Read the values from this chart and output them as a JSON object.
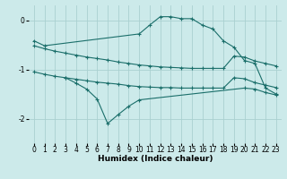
{
  "background_color": "#cceaea",
  "grid_color": "#aad0d0",
  "line_color": "#1a6e6a",
  "xlabel": "Humidex (Indice chaleur)",
  "ylim": [
    -2.5,
    0.3
  ],
  "xlim": [
    -0.5,
    23.5
  ],
  "yticks": [
    0,
    -1,
    -2
  ],
  "xtick_labels": [
    "0",
    "1",
    "2",
    "3",
    "4",
    "5",
    "6",
    "7",
    "8",
    "9",
    "10",
    "11",
    "12",
    "13",
    "14",
    "15",
    "16",
    "17",
    "18",
    "19",
    "20",
    "21",
    "22",
    "23"
  ],
  "curve1_x": [
    0,
    1,
    10,
    11,
    12,
    13,
    14,
    15,
    16,
    17,
    18,
    19,
    20,
    21,
    22,
    23
  ],
  "curve1_y": [
    -0.42,
    -0.52,
    -0.28,
    -0.1,
    0.07,
    0.07,
    0.03,
    0.03,
    -0.1,
    -0.18,
    -0.42,
    -0.55,
    -0.82,
    -0.88,
    -1.38,
    -1.5
  ],
  "curve2_x": [
    0,
    1,
    2,
    3,
    4,
    5,
    6,
    7,
    8,
    9,
    10,
    11,
    12,
    13,
    14,
    15,
    16,
    17,
    18,
    19,
    20,
    21,
    22,
    23
  ],
  "curve2_y": [
    -0.52,
    -0.58,
    -0.63,
    -0.67,
    -0.71,
    -0.75,
    -0.78,
    -0.81,
    -0.85,
    -0.88,
    -0.91,
    -0.93,
    -0.95,
    -0.96,
    -0.97,
    -0.98,
    -0.98,
    -0.98,
    -0.98,
    -0.73,
    -0.75,
    -0.83,
    -0.88,
    -0.93
  ],
  "curve3_x": [
    0,
    1,
    2,
    3,
    4,
    5,
    6,
    7,
    8,
    9,
    10,
    11,
    12,
    13,
    14,
    15,
    16,
    17,
    18,
    19,
    20,
    21,
    22,
    23
  ],
  "curve3_y": [
    -1.05,
    -1.1,
    -1.14,
    -1.17,
    -1.2,
    -1.23,
    -1.26,
    -1.28,
    -1.3,
    -1.33,
    -1.35,
    -1.36,
    -1.37,
    -1.37,
    -1.38,
    -1.38,
    -1.38,
    -1.38,
    -1.38,
    -1.17,
    -1.19,
    -1.27,
    -1.32,
    -1.37
  ],
  "curve4_x": [
    3,
    4,
    5,
    6,
    7,
    8,
    9,
    10,
    20,
    21,
    22,
    23
  ],
  "curve4_y": [
    -1.17,
    -1.28,
    -1.4,
    -1.6,
    -2.1,
    -1.92,
    -1.75,
    -1.62,
    -1.38,
    -1.4,
    -1.47,
    -1.52
  ],
  "tick_fontsize": 5.5,
  "axis_fontsize": 6.5
}
